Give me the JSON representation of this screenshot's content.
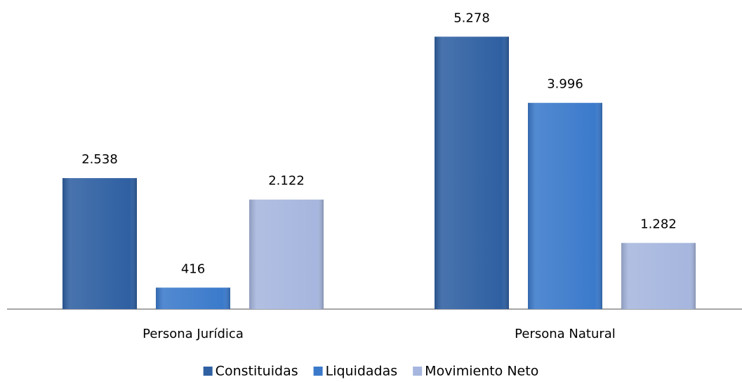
{
  "chart_data": {
    "type": "bar",
    "categories": [
      "Persona Jurídica",
      "Persona Natural"
    ],
    "series": [
      {
        "name": "Constituidas",
        "color": "#2f60a2",
        "values": [
          2538,
          5278
        ],
        "value_labels": [
          "2.538",
          "5.278"
        ]
      },
      {
        "name": "Liquidadas",
        "color": "#3b7acb",
        "values": [
          416,
          3996
        ],
        "value_labels": [
          "416",
          "3.996"
        ]
      },
      {
        "name": "Movimiento Neto",
        "color": "#a6b6de",
        "values": [
          2122,
          1282
        ],
        "value_labels": [
          "2.122",
          "1.282"
        ]
      }
    ],
    "ylim": [
      0,
      5500
    ],
    "legend": "bottom"
  }
}
